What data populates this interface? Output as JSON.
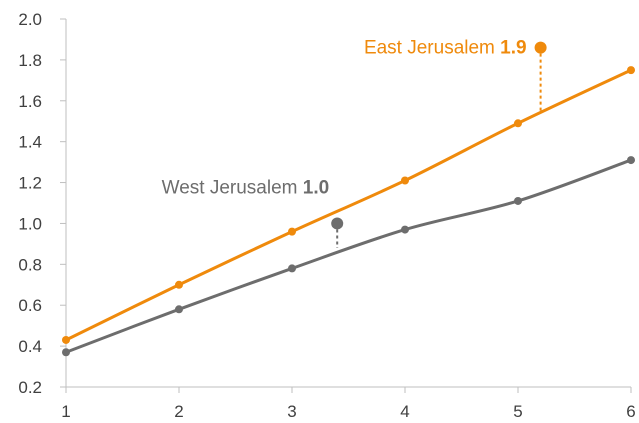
{
  "chart_data": {
    "type": "line",
    "x": [
      1,
      2,
      3,
      4,
      5,
      6
    ],
    "xlim": [
      1,
      6
    ],
    "ylim": [
      0.2,
      2.0
    ],
    "x_ticks": [
      "1",
      "2",
      "3",
      "4",
      "5",
      "6"
    ],
    "y_ticks": [
      "0.2",
      "0.4",
      "0.6",
      "0.8",
      "1.0",
      "1.2",
      "1.4",
      "1.6",
      "1.8",
      "2.0"
    ],
    "grid": false,
    "series": [
      {
        "name": "East Jerusalem",
        "color": "#ef8a0c",
        "values": [
          0.43,
          0.7,
          0.96,
          1.21,
          1.49,
          1.75
        ]
      },
      {
        "name": "West Jerusalem",
        "color": "#6d6d6d",
        "values": [
          0.37,
          0.58,
          0.78,
          0.97,
          1.11,
          1.31
        ]
      }
    ],
    "annotations": [
      {
        "series_index": 0,
        "label": "East Jerusalem",
        "value_label": "1.9",
        "x": 5.2,
        "y": 1.86,
        "line_to_y": 1.55,
        "color": "#ef8a0c"
      },
      {
        "series_index": 1,
        "label": "West Jerusalem",
        "value_label": "1.0",
        "x": 3.4,
        "y": 1.0,
        "line_to_y": 0.88,
        "color": "#6d6d6d"
      }
    ],
    "axis_color": "#bfbfbf",
    "tick_label_color": "#404040"
  }
}
